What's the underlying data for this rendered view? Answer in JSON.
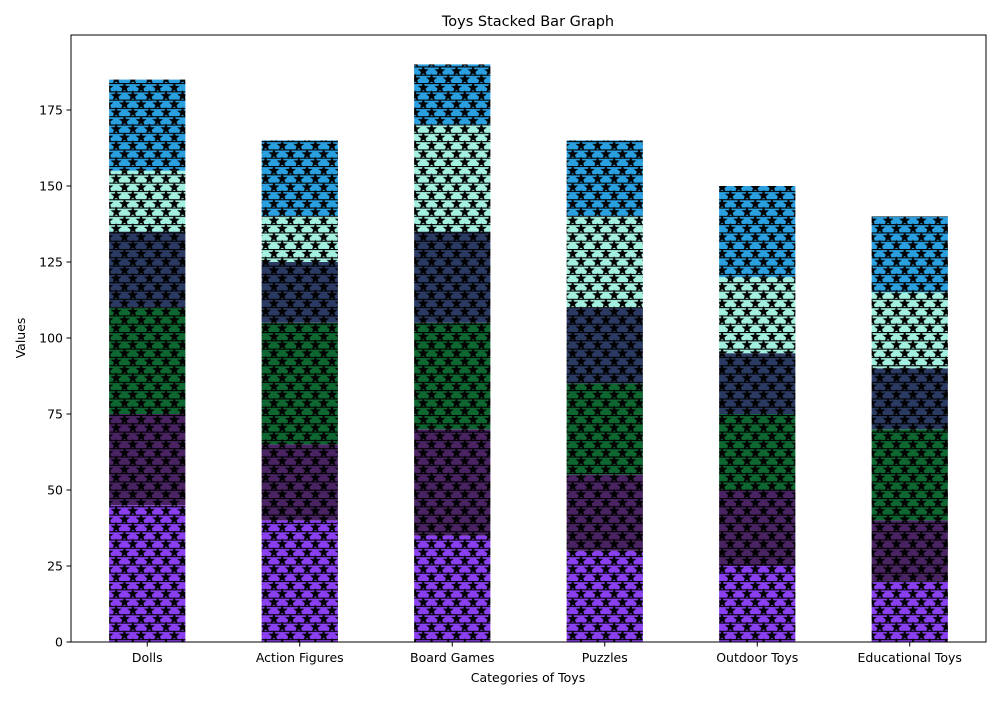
{
  "chart_data": {
    "type": "bar",
    "stacked": true,
    "title": "Toys Stacked Bar Graph",
    "xlabel": "Categories of Toys",
    "ylabel": "Values",
    "categories": [
      "Dolls",
      "Action Figures",
      "Board Games",
      "Puzzles",
      "Outdoor Toys",
      "Educational Toys"
    ],
    "ylim": [
      0,
      200
    ],
    "yticks": [
      0,
      25,
      50,
      75,
      100,
      125,
      150,
      175
    ],
    "grid": false,
    "legend": "none",
    "hatch": "stars-and-horizontal-lines",
    "series": [
      {
        "color": "#8a3ff0",
        "values": [
          45,
          40,
          35,
          30,
          25,
          20
        ]
      },
      {
        "color": "#4a2363",
        "values": [
          30,
          25,
          35,
          25,
          25,
          20
        ]
      },
      {
        "color": "#0e6630",
        "values": [
          35,
          40,
          35,
          30,
          25,
          30
        ]
      },
      {
        "color": "#2b3a63",
        "values": [
          25,
          20,
          30,
          25,
          20,
          20
        ]
      },
      {
        "color": "#a4f0e0",
        "values": [
          20,
          15,
          35,
          30,
          25,
          25
        ]
      },
      {
        "color": "#2aa0e0",
        "values": [
          30,
          25,
          20,
          25,
          30,
          25
        ]
      }
    ]
  }
}
